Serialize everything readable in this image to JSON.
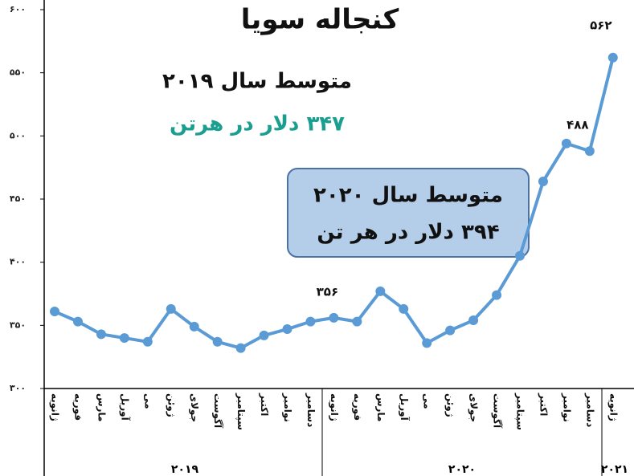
{
  "chart_data": {
    "type": "line",
    "title": "کنجاله سویا",
    "annotations": [
      "متوسط سال ۲۰۱۹",
      "۳۴۷ دلار در هرتن",
      "متوسط سال ۲۰۲۰",
      "۳۹۴ دلار در هر تن"
    ],
    "year_groups": [
      "۲۰۱۹",
      "۲۰۲۰",
      "۲۰۲۱"
    ],
    "categories": [
      "ژانویه",
      "فوریه",
      "مارس",
      "آوریل",
      "می",
      "ژوئن",
      "جولای",
      "آگوست",
      "سپتامبر",
      "اکتبر",
      "نوامبر",
      "دسامبر",
      "ژانویه",
      "فوریه",
      "مارس",
      "آوریل",
      "می",
      "ژوئن",
      "جولای",
      "آگوست",
      "سپتامبر",
      "اکتبر",
      "نوامبر",
      "دسامبر",
      "ژانویه"
    ],
    "series": [
      {
        "name": "کنجاله سویا",
        "color": "#5b9bd5",
        "values": [
          361,
          353,
          343,
          340,
          337,
          363,
          349,
          337,
          332,
          342,
          347,
          353,
          356,
          353,
          377,
          363,
          336,
          346,
          354,
          374,
          405,
          464,
          494,
          488,
          562
        ],
        "value_labels": [
          null,
          null,
          null,
          null,
          null,
          null,
          null,
          null,
          null,
          null,
          null,
          null,
          "۳۵۶",
          null,
          null,
          null,
          null,
          null,
          null,
          null,
          null,
          null,
          null,
          "۴۸۸",
          "۵۶۲"
        ]
      }
    ],
    "ylim": [
      300,
      600
    ],
    "yticks": [
      {
        "value": 300,
        "label": "۳۰۰"
      },
      {
        "value": 350,
        "label": "۳۵۰"
      },
      {
        "value": 400,
        "label": "۴۰۰"
      },
      {
        "value": 450,
        "label": "۴۵۰"
      },
      {
        "value": 500,
        "label": "۵۰۰"
      },
      {
        "value": 550,
        "label": "۵۵۰"
      },
      {
        "value": 600,
        "label": "۶۰۰"
      }
    ]
  }
}
